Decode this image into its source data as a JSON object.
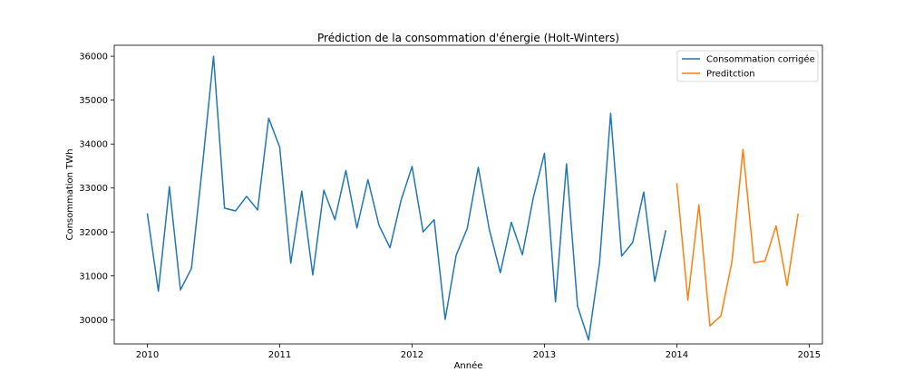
{
  "chart_data": {
    "type": "line",
    "title": "Prédiction de la consommation d'énergie (Holt-Winters)",
    "xlabel": "Année",
    "ylabel": "Consommation TWh",
    "xlim": [
      2009.75,
      2015.1
    ],
    "ylim": [
      29450,
      36250
    ],
    "x_ticks": [
      2010,
      2011,
      2012,
      2013,
      2014,
      2015
    ],
    "y_ticks": [
      30000,
      31000,
      32000,
      33000,
      34000,
      35000,
      36000
    ],
    "grid": false,
    "legend_position": "top-right",
    "series": [
      {
        "name": "Consommation corrigée",
        "color": "#1f77b4",
        "x": [
          2010.0,
          2010.0833,
          2010.1667,
          2010.25,
          2010.3333,
          2010.4167,
          2010.5,
          2010.5833,
          2010.6667,
          2010.75,
          2010.8333,
          2010.9167,
          2011.0,
          2011.0833,
          2011.1667,
          2011.25,
          2011.3333,
          2011.4167,
          2011.5,
          2011.5833,
          2011.6667,
          2011.75,
          2011.8333,
          2011.9167,
          2012.0,
          2012.0833,
          2012.1667,
          2012.25,
          2012.3333,
          2012.4167,
          2012.5,
          2012.5833,
          2012.6667,
          2012.75,
          2012.8333,
          2012.9167,
          2013.0,
          2013.0833,
          2013.1667,
          2013.25,
          2013.3333,
          2013.4167,
          2013.5,
          2013.5833,
          2013.6667,
          2013.75,
          2013.8333,
          2013.9167
        ],
        "y": [
          32420,
          30650,
          33030,
          30680,
          31170,
          33520,
          36000,
          32540,
          32480,
          32810,
          32500,
          34590,
          33930,
          31290,
          32930,
          31020,
          32950,
          32280,
          33400,
          32090,
          33190,
          32150,
          31640,
          32720,
          33490,
          32000,
          32280,
          30010,
          31470,
          32080,
          33470,
          32060,
          31070,
          32220,
          31480,
          32790,
          33790,
          30410,
          33550,
          30310,
          29540,
          31310,
          34700,
          31450,
          31760,
          32910,
          30870,
          32040
        ]
      },
      {
        "name": "Preditction",
        "color": "#ff7f0e",
        "x": [
          2014.0,
          2014.0833,
          2014.1667,
          2014.25,
          2014.3333,
          2014.4167,
          2014.5,
          2014.5833,
          2014.6667,
          2014.75,
          2014.8333,
          2014.9167
        ],
        "y": [
          33110,
          30450,
          32620,
          29860,
          30090,
          31320,
          33880,
          31300,
          31340,
          32140,
          30780,
          32420
        ]
      }
    ]
  }
}
